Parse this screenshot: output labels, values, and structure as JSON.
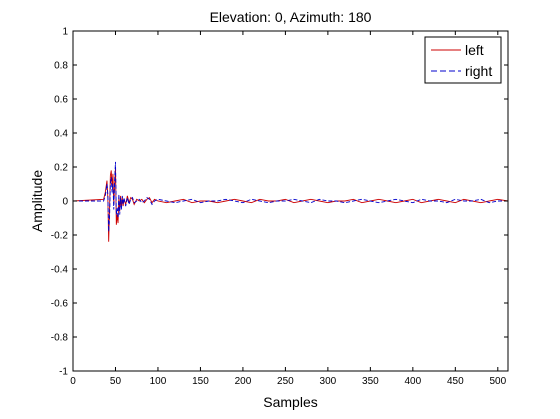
{
  "chart_data": {
    "type": "line",
    "title": "Elevation: 0, Azimuth: 180",
    "xlabel": "Samples",
    "ylabel": "Amplitude",
    "xlim": [
      0,
      512
    ],
    "ylim": [
      -1,
      1
    ],
    "xticks": [
      0,
      50,
      100,
      150,
      200,
      250,
      300,
      350,
      400,
      450,
      500
    ],
    "yticks": [
      -1,
      -0.8,
      -0.6,
      -0.4,
      -0.2,
      0,
      0.2,
      0.4,
      0.6,
      0.8,
      1
    ],
    "ytick_labels": [
      "-1",
      "-0.8",
      "-0.6",
      "-0.4",
      "-0.2",
      "0",
      "0.2",
      "0.4",
      "0.6",
      "0.8",
      "1"
    ],
    "xtick_labels": [
      "0",
      "50",
      "100",
      "150",
      "200",
      "250",
      "300",
      "350",
      "400",
      "450",
      "500"
    ],
    "grid": false,
    "legend_position": "top-right",
    "series": [
      {
        "name": "left",
        "color": "#cc0000",
        "style": "solid",
        "x": [
          0,
          36,
          38,
          40,
          41,
          42,
          43,
          44,
          45,
          46,
          47,
          48,
          49,
          50,
          51,
          52,
          53,
          54,
          55,
          56,
          57,
          58,
          59,
          60,
          62,
          64,
          66,
          68,
          70,
          72,
          75,
          78,
          81,
          84,
          87,
          90,
          93,
          96,
          100,
          110,
          120,
          130,
          140,
          150,
          160,
          170,
          180,
          190,
          200,
          210,
          220,
          230,
          240,
          250,
          260,
          270,
          280,
          290,
          300,
          310,
          320,
          330,
          340,
          350,
          360,
          370,
          380,
          390,
          400,
          410,
          420,
          430,
          440,
          450,
          460,
          470,
          480,
          490,
          500,
          512
        ],
        "values": [
          0,
          0.01,
          0.05,
          0.12,
          0.02,
          -0.24,
          -0.05,
          0.15,
          0.18,
          0.08,
          0.16,
          -0.02,
          0.1,
          0.2,
          -0.14,
          -0.08,
          -0.13,
          0.02,
          -0.06,
          0.03,
          -0.04,
          0.02,
          -0.03,
          0.01,
          -0.02,
          0.03,
          -0.01,
          0.02,
          0.01,
          -0.02,
          0.01,
          0.0,
          0.01,
          -0.01,
          0.01,
          0.02,
          -0.01,
          0.01,
          0.0,
          -0.01,
          0.0,
          0.01,
          -0.01,
          0.0,
          0.0,
          -0.01,
          0.0,
          0.01,
          0.0,
          -0.01,
          0.01,
          0.0,
          0.0,
          0.01,
          -0.01,
          0.0,
          0.01,
          0.0,
          -0.01,
          0.0,
          0.0,
          0.01,
          -0.01,
          0.0,
          0.01,
          0.0,
          -0.01,
          0.0,
          0.01,
          -0.01,
          0.0,
          0.01,
          0.0,
          -0.01,
          0.01,
          0.0,
          -0.01,
          0.0,
          0.01,
          0.0
        ]
      },
      {
        "name": "right",
        "color": "#0000cc",
        "style": "dashed",
        "x": [
          0,
          36,
          38,
          40,
          41,
          42,
          43,
          44,
          45,
          46,
          47,
          48,
          49,
          50,
          51,
          52,
          53,
          54,
          55,
          56,
          57,
          58,
          59,
          60,
          62,
          64,
          66,
          68,
          70,
          72,
          75,
          78,
          81,
          84,
          87,
          90,
          93,
          96,
          100,
          110,
          120,
          130,
          140,
          150,
          160,
          170,
          180,
          190,
          200,
          210,
          220,
          230,
          240,
          250,
          260,
          270,
          280,
          290,
          300,
          310,
          320,
          330,
          340,
          350,
          360,
          370,
          380,
          390,
          400,
          410,
          420,
          430,
          440,
          450,
          460,
          470,
          480,
          490,
          500,
          512
        ],
        "values": [
          0,
          0.0,
          0.03,
          0.1,
          0.04,
          -0.18,
          -0.1,
          0.1,
          0.14,
          0.05,
          0.1,
          -0.05,
          0.12,
          0.23,
          -0.08,
          -0.04,
          -0.1,
          0.04,
          -0.08,
          0.02,
          -0.05,
          0.03,
          -0.02,
          0.02,
          -0.03,
          0.02,
          -0.02,
          0.01,
          0.02,
          -0.01,
          0.0,
          0.01,
          -0.01,
          0.0,
          0.02,
          0.01,
          -0.02,
          0.0,
          0.01,
          0.0,
          -0.01,
          0.0,
          0.01,
          -0.01,
          0.0,
          0.0,
          0.01,
          0.0,
          -0.01,
          0.01,
          0.0,
          -0.01,
          0.0,
          0.0,
          0.01,
          0.0,
          -0.01,
          0.01,
          0.0,
          0.0,
          -0.01,
          0.0,
          0.01,
          0.0,
          -0.01,
          0.0,
          0.01,
          0.0,
          -0.01,
          0.01,
          0.0,
          0.0,
          -0.01,
          0.01,
          0.0,
          0.0,
          0.01,
          -0.01,
          0.0,
          0.0
        ]
      }
    ]
  }
}
